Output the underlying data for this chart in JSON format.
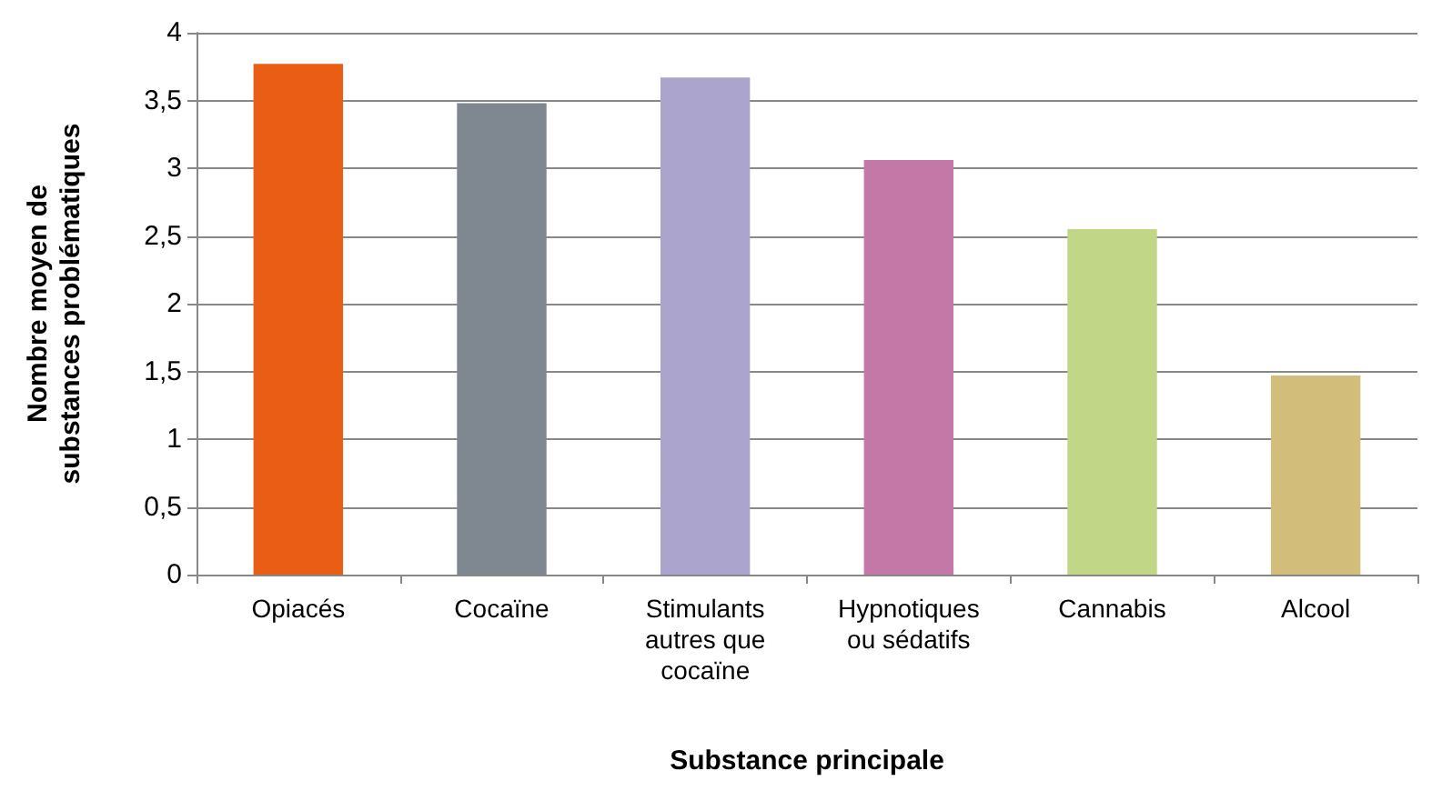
{
  "chart_data": {
    "type": "bar",
    "xlabel": "Substance principale",
    "ylabel": "Nombre moyen de\nsubstances problématiques",
    "categories": [
      "Opiacés",
      "Cocaïne",
      "Stimulants\nautres que\ncocaïne",
      "Hypnotiques\nou sédatifs",
      "Cannabis",
      "Alcool"
    ],
    "values": [
      3.77,
      3.48,
      3.67,
      3.06,
      2.55,
      1.47
    ],
    "colors": [
      "#e95e14",
      "#7f8890",
      "#aba5cd",
      "#c478a7",
      "#c1d686",
      "#d3bd7a"
    ],
    "ylim": [
      0,
      4
    ],
    "yticks": [
      {
        "value": 0,
        "label": "0"
      },
      {
        "value": 0.5,
        "label": "0,5"
      },
      {
        "value": 1,
        "label": "1"
      },
      {
        "value": 1.5,
        "label": "1,5"
      },
      {
        "value": 2,
        "label": "2"
      },
      {
        "value": 2.5,
        "label": "2,5"
      },
      {
        "value": 3,
        "label": "3"
      },
      {
        "value": 3.5,
        "label": "3,5"
      },
      {
        "value": 4,
        "label": "4"
      }
    ],
    "grid": "y"
  }
}
